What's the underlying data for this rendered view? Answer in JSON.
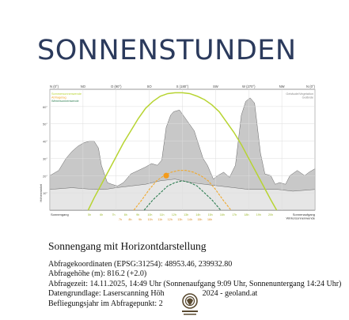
{
  "page": {
    "headline": "SONNENSTUNDEN"
  },
  "chart_data": {
    "type": "area",
    "title": "",
    "xlabel": "",
    "ylabel": "Höhenwinkel",
    "xlim": [
      0,
      360
    ],
    "ylim": [
      0,
      70
    ],
    "grid": true,
    "top_axis_labels": [
      {
        "azimuth": 0,
        "label": "N (0°)"
      },
      {
        "azimuth": 45,
        "label": "NO"
      },
      {
        "azimuth": 90,
        "label": "O (90°)"
      },
      {
        "azimuth": 135,
        "label": "SO"
      },
      {
        "azimuth": 180,
        "label": "S (180°)"
      },
      {
        "azimuth": 225,
        "label": "SW"
      },
      {
        "azimuth": 270,
        "label": "W (270°)"
      },
      {
        "azimuth": 315,
        "label": "NW"
      },
      {
        "azimuth": 360,
        "label": "N (0°)"
      }
    ],
    "y_ticks": [
      10,
      20,
      30,
      40,
      50,
      60
    ],
    "legend_left": [
      "Sommersonnenwende",
      "Abfragetag",
      "Wintersonnenwende"
    ],
    "legend_right": [
      "Gebäude/Vegetation",
      "Gelände"
    ],
    "bottom_left_label": "Sonnengang",
    "bottom_right_label": "Sonnenaufgang\nWintersonnenwende",
    "hour_labels_summer": [
      "5h",
      "6h",
      "7h",
      "8h",
      "9h",
      "10h",
      "11h",
      "12h",
      "13h",
      "14h",
      "15h",
      "16h",
      "17h",
      "18h",
      "19h",
      "20h"
    ],
    "hour_labels_today": [
      "7h",
      "8h",
      "9h",
      "10h",
      "11h",
      "12h",
      "13h",
      "14h",
      "15h",
      "16h"
    ],
    "horizon_terrain": {
      "azimuth": [
        0,
        30,
        60,
        75,
        90,
        110,
        130,
        150,
        170,
        190,
        210,
        230,
        250,
        270,
        290,
        310,
        330,
        360
      ],
      "altitude": [
        12,
        13,
        12,
        12,
        13,
        14,
        15,
        17,
        18,
        16,
        15,
        14,
        13,
        12,
        12,
        12,
        11,
        12
      ]
    },
    "horizon_obstacles": {
      "azimuth": [
        0,
        12,
        22,
        30,
        38,
        46,
        54,
        60,
        66,
        70,
        78,
        84,
        92,
        100,
        110,
        120,
        130,
        138,
        146,
        152,
        158,
        164,
        168,
        176,
        186,
        196,
        208,
        214,
        218,
        222,
        228,
        236,
        244,
        252,
        260,
        266,
        272,
        278,
        286,
        292,
        300,
        306,
        312,
        320,
        326,
        336,
        346,
        352,
        360
      ],
      "altitude": [
        20,
        23,
        30,
        34,
        37,
        39,
        40,
        40,
        36,
        26,
        16,
        15,
        14,
        16,
        21,
        23,
        25,
        27,
        26,
        29,
        48,
        55,
        57,
        58,
        52,
        46,
        30,
        26,
        22,
        18,
        20,
        22,
        19,
        26,
        55,
        63,
        65,
        62,
        33,
        21,
        20,
        15,
        16,
        15,
        20,
        23,
        20,
        22,
        24
      ]
    },
    "series": [
      {
        "name": "Sommersonnenwende",
        "x": [
          52,
          60,
          70,
          80,
          90,
          100,
          110,
          120,
          130,
          140,
          150,
          160,
          170,
          180,
          190,
          200,
          210,
          220,
          230,
          240,
          250,
          260,
          270,
          280,
          290,
          300,
          308
        ],
        "y": [
          0,
          7,
          15,
          23,
          31,
          39,
          46,
          53,
          59,
          63,
          66,
          67.5,
          68,
          68,
          67.5,
          66,
          64,
          61,
          57,
          51,
          45,
          38,
          30,
          22,
          14,
          6,
          0
        ]
      },
      {
        "name": "Abfragetag",
        "x": [
          114,
          125,
          135,
          145,
          155,
          165,
          175,
          180,
          185,
          195,
          205,
          215,
          225,
          235,
          246
        ],
        "y": [
          0,
          6,
          12,
          17,
          20,
          22,
          23,
          23,
          23,
          22,
          20,
          17,
          12,
          6,
          0
        ]
      },
      {
        "name": "Wintersonnenwende",
        "x": [
          128,
          140,
          150,
          160,
          170,
          180,
          190,
          200,
          210,
          220,
          232
        ],
        "y": [
          0,
          6,
          10,
          14,
          16,
          17,
          16,
          14,
          10,
          6,
          0
        ]
      }
    ],
    "sun_marker": {
      "azimuth": 158,
      "altitude": 20
    },
    "colors": {
      "summer": "#b7d432",
      "today": "#f0a92d",
      "winter": "#2e7e52",
      "obstacles": "#c8c8c8",
      "terrain": "#e6e6e6",
      "sun": "#f49b1b"
    }
  },
  "caption": {
    "title": "Sonnengang mit Horizontdarstellung",
    "lines": [
      "Abfragekoordinaten (EPSG:31254): 48953.46, 239932.80",
      "Abfragehöhe (m): 816.2 (+2.0)",
      "Abfragezeit: 14.11.2025, 14:49 Uhr (Sonnenaufgang 9:09 Uhr,  Sonnenuntergang 14:24 Uhr)",
      "Datengrundlage: Laserscanning Höh",
      "Befliegungsjahr im Abfragepunkt: 2",
      "2024 - geoland.at"
    ]
  }
}
